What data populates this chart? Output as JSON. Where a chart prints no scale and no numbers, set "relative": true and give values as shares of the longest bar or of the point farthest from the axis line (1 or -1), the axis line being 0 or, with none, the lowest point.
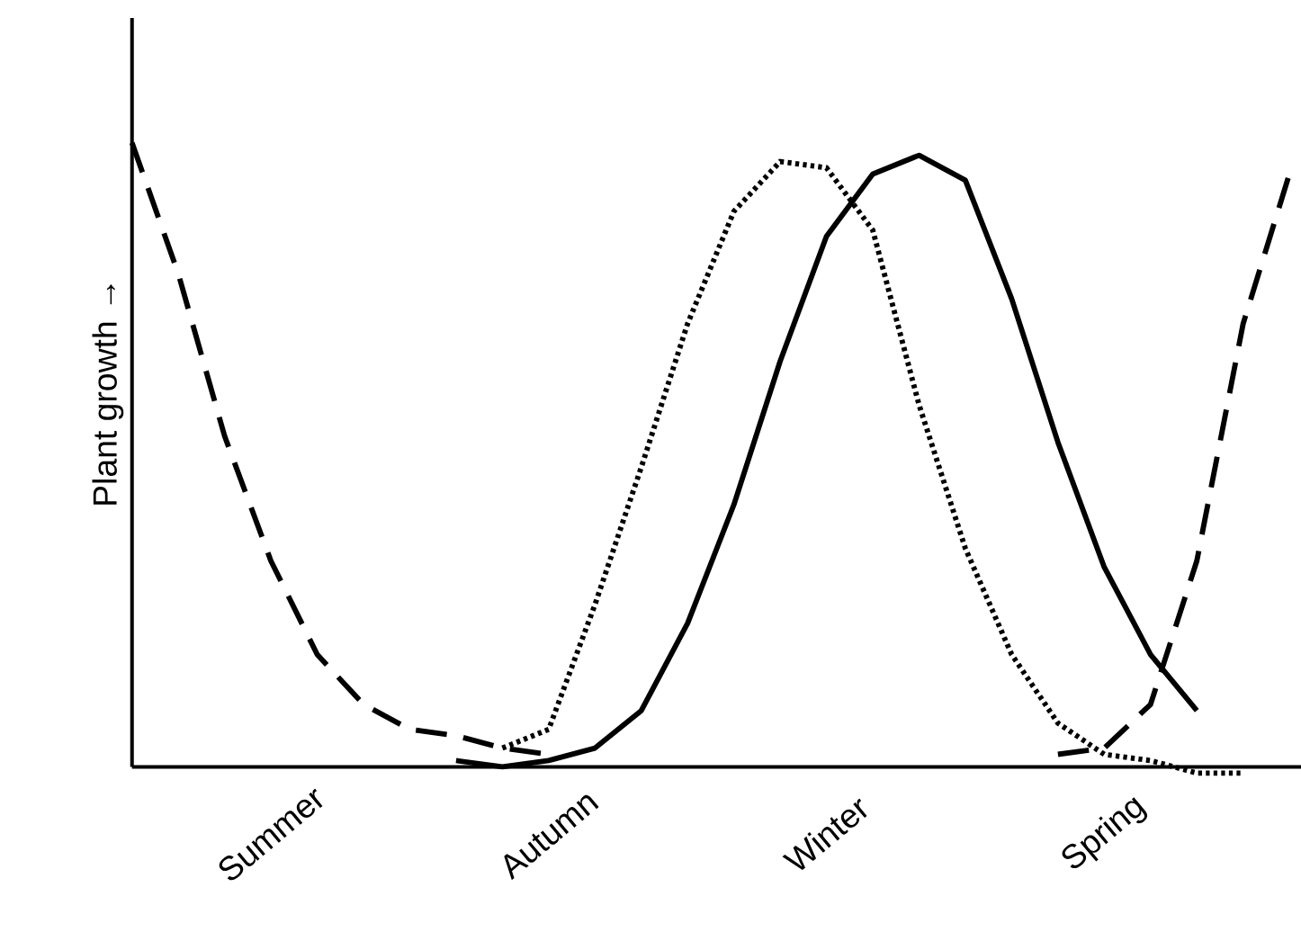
{
  "chart_data": {
    "type": "line",
    "relative": true,
    "ylabel": "Plant growth →",
    "categories": [
      null,
      null,
      null,
      "Summer",
      null,
      null,
      null,
      null,
      null,
      "Autumn",
      null,
      null,
      null,
      null,
      null,
      "Winter",
      null,
      null,
      null,
      null,
      null,
      "Spring",
      null,
      null,
      null,
      null
    ],
    "tick_labels": "x",
    "marker": "none",
    "series": [
      {
        "color": "#000000",
        "line_style": "dashed",
        "values": [
          1.0,
          0.79,
          0.53,
          0.33,
          0.18,
          0.1,
          0.06,
          0.05,
          0.03,
          0.02,
          null,
          null,
          null,
          null,
          null,
          null,
          null,
          null,
          null,
          null,
          0.02,
          0.03,
          0.1,
          0.33,
          0.71,
          0.95
        ]
      },
      {
        "color": "#000000",
        "line_style": "dotted",
        "values": [
          null,
          null,
          null,
          null,
          null,
          null,
          null,
          null,
          0.03,
          0.06,
          0.26,
          0.48,
          0.71,
          0.89,
          0.97,
          0.96,
          0.86,
          0.58,
          0.35,
          0.18,
          0.07,
          0.02,
          0.01,
          -0.01,
          -0.01,
          null
        ]
      },
      {
        "color": "#000000",
        "line_style": "solid",
        "values": [
          null,
          null,
          null,
          null,
          null,
          null,
          null,
          0.01,
          0.0,
          0.01,
          0.03,
          0.09,
          0.23,
          0.42,
          0.65,
          0.85,
          0.95,
          0.98,
          0.94,
          0.75,
          0.52,
          0.32,
          0.18,
          0.09,
          null,
          null
        ]
      }
    ]
  }
}
